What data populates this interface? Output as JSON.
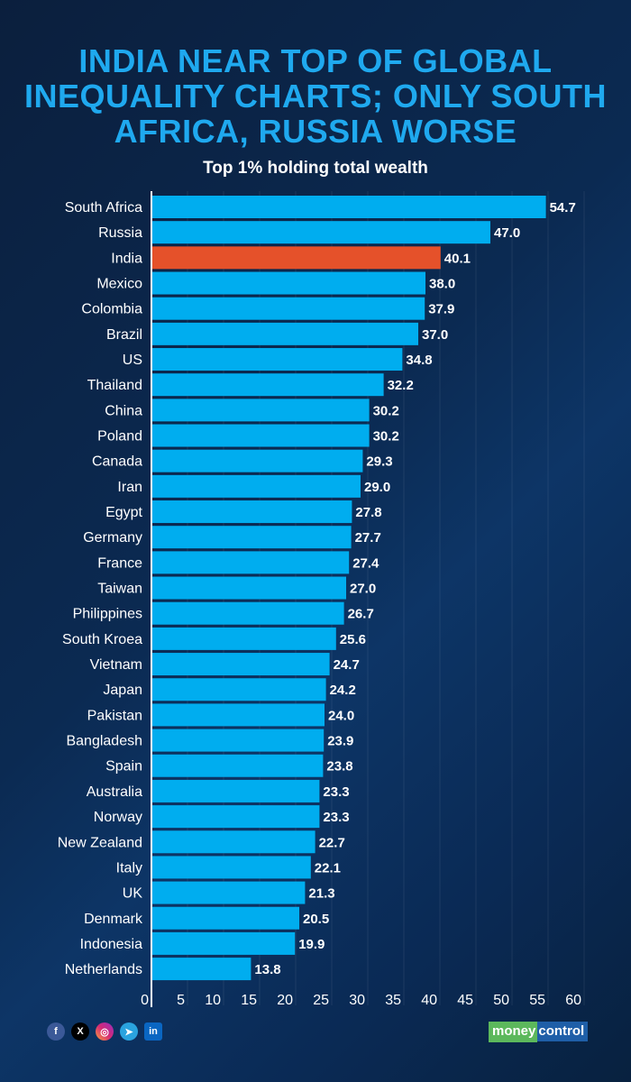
{
  "chart_data": {
    "type": "bar",
    "orientation": "horizontal",
    "title": "INDIA NEAR TOP OF GLOBAL INEQUALITY CHARTS; ONLY SOUTH AFRICA, RUSSIA WORSE",
    "subtitle": "Top 1% holding total wealth",
    "categories": [
      "South Africa",
      "Russia",
      "India",
      "Mexico",
      "Colombia",
      "Brazil",
      "US",
      "Thailand",
      "China",
      "Poland",
      "Canada",
      "Iran",
      "Egypt",
      "Germany",
      "France",
      "Taiwan",
      "Philippines",
      "South Kroea",
      "Vietnam",
      "Japan",
      "Pakistan",
      "Bangladesh",
      "Spain",
      "Australia",
      "Norway",
      "New Zealand",
      "Italy",
      "UK",
      "Denmark",
      "Indonesia",
      "Netherlands"
    ],
    "values": [
      54.7,
      47.0,
      40.1,
      38.0,
      37.9,
      37.0,
      34.8,
      32.2,
      30.2,
      30.2,
      29.3,
      29.0,
      27.8,
      27.7,
      27.4,
      27.0,
      26.7,
      25.6,
      24.7,
      24.2,
      24.0,
      23.9,
      23.8,
      23.3,
      23.3,
      22.7,
      22.1,
      21.3,
      20.5,
      19.9,
      13.8
    ],
    "highlight": "India",
    "xlim": [
      0,
      60
    ],
    "xticks": [
      "0",
      "5",
      "10",
      "15",
      "20",
      "25",
      "30",
      "35",
      "40",
      "45",
      "50",
      "55",
      "60"
    ],
    "grid": true,
    "colors": {
      "bar": "#00adef",
      "highlight": "#e5512a",
      "title": "#1fa9ef"
    }
  },
  "footer": {
    "social_icons": [
      "facebook-icon",
      "x-icon",
      "instagram-icon",
      "telegram-icon",
      "linkedin-icon"
    ],
    "logo": "moneycontrol"
  }
}
